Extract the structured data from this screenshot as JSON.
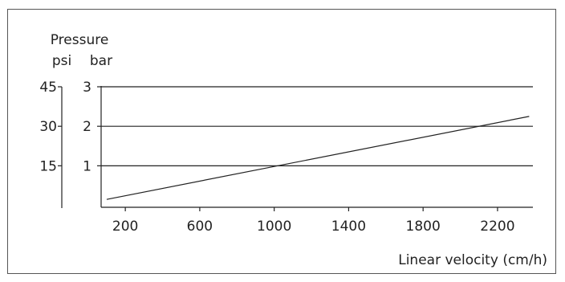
{
  "chart_data": {
    "type": "line",
    "title": "Pressure",
    "xlabel": "Linear velocity (cm/h)",
    "ylabel_primary": "bar",
    "ylabel_secondary": "psi",
    "x_ticks": [
      200,
      600,
      1000,
      1400,
      1800,
      2200
    ],
    "xlim": [
      70,
      2390
    ],
    "y_bar_ticks": [
      1,
      2,
      3
    ],
    "ylim_bar": [
      -0.05,
      3
    ],
    "y_psi_ticks": [
      15,
      30,
      45
    ],
    "grid": "horizontal lines at 1 and 2 bar",
    "series": [
      {
        "x": [
          100,
          2370
        ],
        "y": [
          0.15,
          2.25
        ]
      }
    ]
  }
}
